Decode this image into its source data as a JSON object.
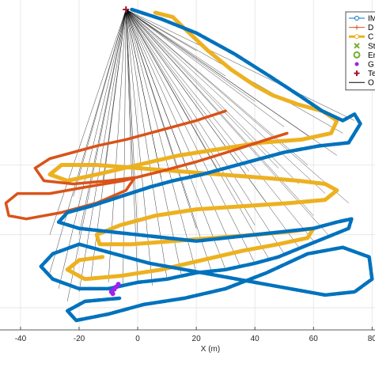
{
  "chart_data": {
    "type": "line",
    "xlabel": "X (m)",
    "ylabel": "",
    "xlim": [
      -47,
      81
    ],
    "ylim": [
      -36,
      15
    ],
    "x_ticks": [
      -40,
      -20,
      0,
      20,
      40,
      60,
      80
    ],
    "x_tick_labels": [
      "-40",
      "-20",
      "0",
      "20",
      "40",
      "60",
      "80"
    ],
    "y_grid_values": [
      -32.5,
      -21,
      -10
    ],
    "grid": true,
    "legend_position": "top-right",
    "legend_visible_text": [
      "IM",
      "D",
      "C",
      "St",
      "Er",
      "G",
      "Te",
      "O"
    ],
    "colors": {
      "imu": "#0072BD",
      "d_series": "#D95319",
      "c_series": "#EDB120",
      "start": "#77AC30",
      "end": "#77AC30",
      "g_series": "#A020F0",
      "t_series": "#A2142F",
      "obs_lines": "#000000"
    },
    "origin_marker": [
      -4,
      14.5
    ],
    "series": [
      {
        "key": "imu",
        "style": "dashed-thick",
        "points": [
          [
            -2,
            14.5
          ],
          [
            8,
            13
          ],
          [
            20,
            10.8
          ],
          [
            33,
            7.5
          ],
          [
            45,
            4
          ],
          [
            55,
            1
          ],
          [
            63,
            -1.5
          ],
          [
            70,
            -3
          ],
          [
            74,
            -2
          ],
          [
            76,
            -3.5
          ],
          [
            72,
            -6.5
          ],
          [
            62,
            -7
          ],
          [
            50,
            -8
          ],
          [
            38,
            -9.5
          ],
          [
            30,
            -10.5
          ],
          [
            22,
            -11.5
          ],
          [
            12,
            -12.5
          ],
          [
            4,
            -13.5
          ],
          [
            -6,
            -15
          ],
          [
            -16,
            -16.5
          ],
          [
            -24,
            -17.5
          ],
          [
            -27,
            -19
          ],
          [
            -20,
            -20
          ],
          [
            -10,
            -20.5
          ],
          [
            0,
            -21
          ],
          [
            10,
            -21.5
          ],
          [
            20,
            -22
          ],
          [
            30,
            -21.5
          ],
          [
            40,
            -21
          ],
          [
            50,
            -20.5
          ],
          [
            60,
            -20
          ],
          [
            68,
            -19
          ],
          [
            73,
            -18.5
          ],
          [
            72,
            -20
          ],
          [
            64,
            -21.5
          ],
          [
            56,
            -23
          ],
          [
            48,
            -24.5
          ],
          [
            40,
            -25.5
          ],
          [
            30,
            -26.5
          ],
          [
            20,
            -27
          ],
          [
            10,
            -28
          ],
          [
            0,
            -28.5
          ],
          [
            -10,
            -29.5
          ],
          [
            -20,
            -29.5
          ],
          [
            -29,
            -28
          ],
          [
            -33,
            -26
          ],
          [
            -29,
            -24
          ],
          [
            -20,
            -22.5
          ],
          [
            -8,
            -24
          ],
          [
            4,
            -25.5
          ],
          [
            16,
            -26.5
          ],
          [
            28,
            -27.5
          ],
          [
            40,
            -28.5
          ],
          [
            52,
            -29.5
          ],
          [
            64,
            -30.5
          ],
          [
            74,
            -30
          ],
          [
            80,
            -28
          ],
          [
            79,
            -24.5
          ],
          [
            70,
            -23
          ],
          [
            58,
            -24
          ],
          [
            44,
            -27
          ],
          [
            30,
            -29.5
          ],
          [
            16,
            -31
          ],
          [
            2,
            -32
          ],
          [
            -10,
            -33.5
          ],
          [
            -21,
            -34.5
          ],
          [
            -24,
            -33
          ],
          [
            -18,
            -31.5
          ],
          [
            -6,
            -31
          ]
        ]
      },
      {
        "key": "d_series",
        "style": "solid-thick",
        "points": [
          [
            30,
            -1.5
          ],
          [
            20,
            -3
          ],
          [
            8,
            -4.5
          ],
          [
            -4,
            -6
          ],
          [
            -14,
            -7
          ],
          [
            -22,
            -8
          ],
          [
            -30,
            -9
          ],
          [
            -35,
            -10.5
          ],
          [
            -32,
            -12.5
          ],
          [
            -22,
            -13
          ],
          [
            -10,
            -12.5
          ],
          [
            -1,
            -12
          ],
          [
            -4,
            -14
          ],
          [
            -14,
            -16
          ],
          [
            -26,
            -17.5
          ],
          [
            -38,
            -18.5
          ],
          [
            -44,
            -18
          ],
          [
            -45,
            -16
          ],
          [
            -41,
            -14.5
          ],
          [
            -30,
            -14.5
          ],
          [
            -18,
            -13.5
          ],
          [
            -5,
            -12.5
          ],
          [
            8,
            -11
          ],
          [
            20,
            -9.5
          ],
          [
            34,
            -7.5
          ],
          [
            44,
            -6
          ],
          [
            51,
            -5
          ]
        ]
      },
      {
        "key": "c_series",
        "style": "solid-thick",
        "points": [
          [
            6,
            14
          ],
          [
            12,
            13.3
          ],
          [
            16,
            11.5
          ],
          [
            24,
            8
          ],
          [
            32,
            5
          ],
          [
            40,
            2.5
          ],
          [
            46,
            1
          ],
          [
            55,
            -0.5
          ],
          [
            63,
            -1.5
          ],
          [
            68,
            -3
          ],
          [
            66,
            -5
          ],
          [
            56,
            -6
          ],
          [
            42,
            -6.5
          ],
          [
            28,
            -7.5
          ],
          [
            14,
            -8.5
          ],
          [
            0,
            -10
          ],
          [
            -14,
            -11.5
          ],
          [
            -24,
            -12.5
          ],
          [
            -30,
            -11.5
          ],
          [
            -26,
            -10
          ],
          [
            -14,
            -10
          ],
          [
            0,
            -10.5
          ],
          [
            14,
            -11
          ],
          [
            28,
            -11.5
          ],
          [
            42,
            -12
          ],
          [
            55,
            -12.5
          ],
          [
            64,
            -13
          ],
          [
            68,
            -14
          ],
          [
            64,
            -15.5
          ],
          [
            52,
            -16
          ],
          [
            36,
            -16.5
          ],
          [
            20,
            -17
          ],
          [
            6,
            -18
          ],
          [
            -6,
            -19.5
          ],
          [
            -14,
            -21
          ],
          [
            -13,
            -22.5
          ],
          [
            -2,
            -22.5
          ],
          [
            12,
            -22
          ],
          [
            26,
            -21.5
          ],
          [
            40,
            -21
          ],
          [
            52,
            -20.5
          ],
          [
            60,
            -20
          ],
          [
            58,
            -21.5
          ],
          [
            48,
            -22.5
          ],
          [
            36,
            -23.5
          ],
          [
            22,
            -25
          ],
          [
            8,
            -26.5
          ],
          [
            -6,
            -27.5
          ],
          [
            -18,
            -28
          ],
          [
            -24,
            -26.5
          ],
          [
            -20,
            -25
          ],
          [
            -12,
            -24.5
          ]
        ]
      }
    ],
    "obs_line_targets": [
      [
        -30,
        -27
      ],
      [
        -27,
        -29.5
      ],
      [
        -24,
        -31.5
      ],
      [
        -20,
        -30
      ],
      [
        -16,
        -28
      ],
      [
        -10,
        -28.5
      ],
      [
        -5,
        -29
      ],
      [
        0,
        -28.5
      ],
      [
        5,
        -29
      ],
      [
        10,
        -28
      ],
      [
        15,
        -27.5
      ],
      [
        20,
        -27
      ],
      [
        25,
        -26.5
      ],
      [
        30,
        -26.5
      ],
      [
        35,
        -26
      ],
      [
        40,
        -25.5
      ],
      [
        45,
        -25
      ],
      [
        50,
        -24
      ],
      [
        55,
        -23
      ],
      [
        60,
        -22
      ],
      [
        65,
        -21
      ],
      [
        -22,
        -15
      ],
      [
        -12,
        -13
      ],
      [
        -2,
        -12.5
      ],
      [
        8,
        -12
      ],
      [
        18,
        -12
      ],
      [
        28,
        -11.5
      ],
      [
        38,
        -11
      ],
      [
        48,
        -10.5
      ],
      [
        58,
        -10
      ],
      [
        68,
        -8.5
      ],
      [
        -30,
        -21
      ],
      [
        -20,
        -21
      ],
      [
        0,
        -21
      ],
      [
        20,
        -20
      ],
      [
        40,
        -19.5
      ],
      [
        60,
        -18
      ],
      [
        74,
        -3
      ],
      [
        70,
        -5
      ],
      [
        60,
        -6
      ],
      [
        50,
        -4
      ],
      [
        40,
        0
      ],
      [
        30,
        4
      ],
      [
        20,
        8
      ],
      [
        55,
        -13
      ],
      [
        64,
        -14.5
      ],
      [
        72,
        -16
      ],
      [
        44,
        -16
      ]
    ],
    "start_markers": [],
    "g_points": [
      [
        -9,
        -30
      ],
      [
        -8,
        -29.6
      ],
      [
        -7.3,
        -29.2
      ],
      [
        -6.6,
        -28.8
      ],
      [
        -8.5,
        -30.3
      ]
    ]
  }
}
